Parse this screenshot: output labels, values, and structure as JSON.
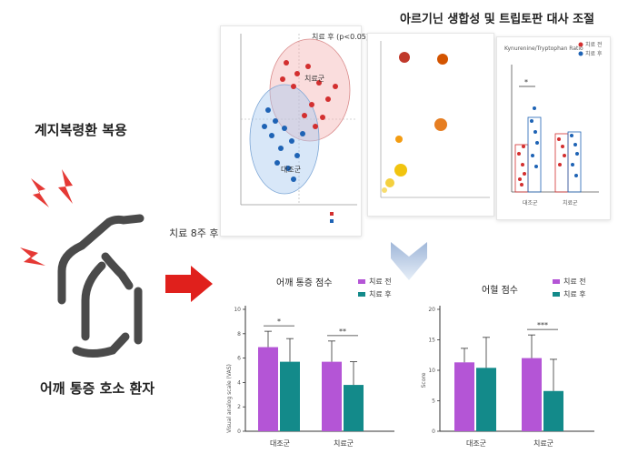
{
  "left": {
    "title": "계지복령환 복용",
    "patient_label": "어깨 통증 호소 환자"
  },
  "arrow_label": "치료 8주 후",
  "pca": {
    "legend_title": "치료 후 (p<0.05)",
    "group_treat": "치료군",
    "group_control": "대조군",
    "colors": {
      "treat": "#d32f2f",
      "control": "#1e63b5"
    }
  },
  "metabolism": {
    "title": "아르기닌 생합성 및 트립토판 대사 조절",
    "ratio_title": "Kynurenine/Tryptophan Ratio",
    "legend": [
      "치료 전",
      "치료 후"
    ],
    "categories": [
      "대조군",
      "치료군"
    ],
    "significance": "*",
    "title_color": "#d6338a"
  },
  "charts": [
    {
      "type": "bar",
      "title": "어깨 통증 점수",
      "ylabel": "Visual analog scale (VAS)",
      "categories": [
        "대조군",
        "치료군"
      ],
      "series": [
        {
          "name": "치료 전",
          "values": [
            6.9,
            5.7
          ],
          "errors": [
            1.3,
            1.7
          ]
        },
        {
          "name": "치료 후",
          "values": [
            5.7,
            3.8
          ],
          "errors": [
            1.9,
            1.9
          ]
        }
      ],
      "ylim": [
        0,
        10
      ],
      "yticks": [
        0,
        2,
        4,
        6,
        8,
        10
      ],
      "significance": [
        "*",
        "**"
      ],
      "colors": [
        "#b455d6",
        "#138a8a"
      ]
    },
    {
      "type": "bar",
      "title": "어혈 점수",
      "ylabel": "Score",
      "categories": [
        "대조군",
        "치료군"
      ],
      "series": [
        {
          "name": "치료 전",
          "values": [
            11.3,
            12.0
          ],
          "errors": [
            2.3,
            3.8
          ]
        },
        {
          "name": "치료 후",
          "values": [
            10.4,
            6.6
          ],
          "errors": [
            5.0,
            5.2
          ]
        }
      ],
      "ylim": [
        0,
        20
      ],
      "yticks": [
        0,
        5,
        10,
        15,
        20
      ],
      "significance": [
        null,
        "***"
      ],
      "colors": [
        "#b455d6",
        "#138a8a"
      ]
    }
  ]
}
